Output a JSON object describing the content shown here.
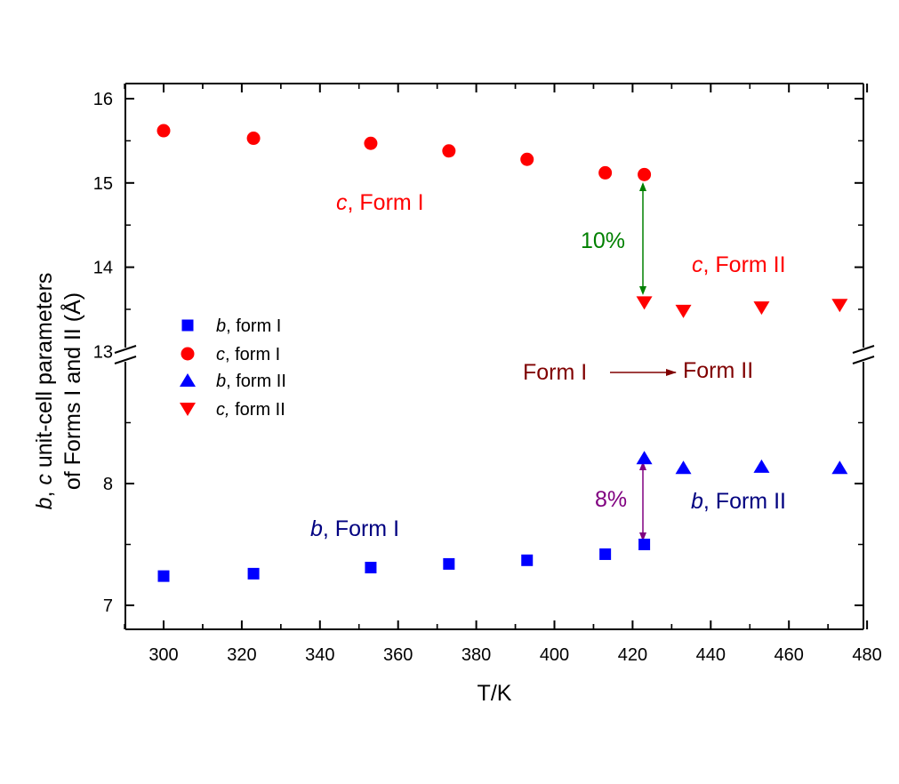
{
  "chart_data": {
    "type": "scatter",
    "xlabel": "T/K",
    "ylabel_line1_italic_b": "b",
    "ylabel_line1_sep": ", ",
    "ylabel_line1_italic_c": "c",
    "ylabel_line1_rest": " unit-cell parameters",
    "ylabel_line2": "of Forms I and II (Å)",
    "xlim": [
      290,
      480
    ],
    "x_ticks": [
      "300",
      "320",
      "340",
      "360",
      "380",
      "400",
      "420",
      "440",
      "460",
      "480"
    ],
    "broken_y_axis": true,
    "upper_panel": {
      "ylim": [
        13,
        16.2
      ],
      "ticks": [
        "16",
        "15",
        "14",
        "13"
      ]
    },
    "lower_panel": {
      "ylim": [
        6.8,
        9.0
      ],
      "ticks": [
        "8",
        "7"
      ]
    },
    "series": [
      {
        "name_italic": "b",
        "name_rest": ", form I",
        "marker": "square",
        "color": "#0000ff",
        "panel": "lower",
        "x": [
          300,
          323,
          353,
          373,
          393,
          413,
          423
        ],
        "y": [
          7.24,
          7.26,
          7.31,
          7.34,
          7.37,
          7.42,
          7.5
        ]
      },
      {
        "name_italic": "c",
        "name_rest": ", form I",
        "marker": "circle",
        "color": "#ff0000",
        "panel": "upper",
        "x": [
          300,
          323,
          353,
          373,
          393,
          413,
          423
        ],
        "y": [
          15.62,
          15.53,
          15.47,
          15.38,
          15.28,
          15.12,
          15.1
        ]
      },
      {
        "name_italic": "b",
        "name_rest": ", form II",
        "marker": "triangle-up",
        "color": "#0000ff",
        "panel": "lower",
        "x": [
          423,
          433,
          453,
          473
        ],
        "y": [
          8.21,
          8.13,
          8.14,
          8.13
        ]
      },
      {
        "name_italic": "c,",
        "name_rest": " form II",
        "marker": "triangle-down",
        "color": "#ff0000",
        "panel": "upper",
        "x": [
          423,
          433,
          453,
          473
        ],
        "y": [
          13.58,
          13.48,
          13.52,
          13.55
        ]
      }
    ],
    "annotations": [
      {
        "italic": "c",
        "rest": ", Form I",
        "color": "#ff0000"
      },
      {
        "italic": "c",
        "rest": ", Form II",
        "color": "#ff0000"
      },
      {
        "italic": "b",
        "rest": ", Form I",
        "color": "#000080"
      },
      {
        "italic": "b",
        "rest": ", Form II",
        "color": "#000080"
      },
      {
        "italic": "",
        "rest": "10%",
        "color": "#008000"
      },
      {
        "italic": "",
        "rest": "8%",
        "color": "#800080"
      },
      {
        "italic": "",
        "rest": "Form I",
        "color": "#800000"
      },
      {
        "italic": "",
        "rest": "Form II",
        "color": "#800000"
      }
    ],
    "legend_position": "left-middle",
    "grid": false
  }
}
